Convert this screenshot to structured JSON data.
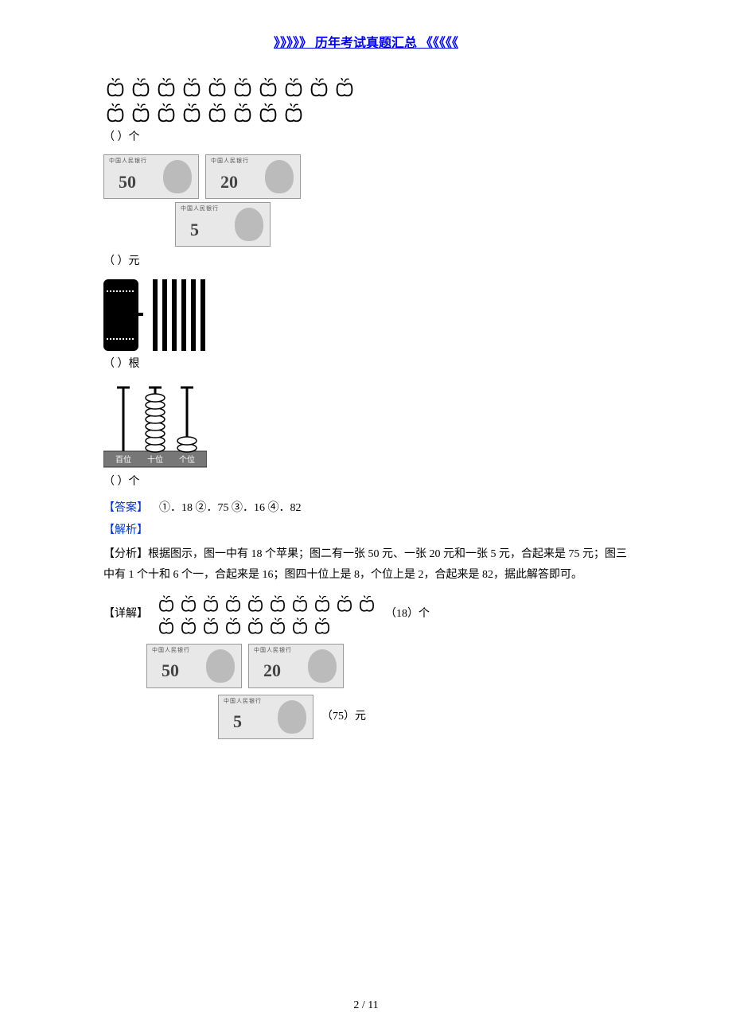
{
  "header_link": "》》》》》 历年考试真题汇总 《《《《《",
  "q1": {
    "apple_rows": [
      10,
      8
    ],
    "unit": "个",
    "blank": "（          ）",
    "answer": "18"
  },
  "q2": {
    "notes": [
      50,
      20,
      5
    ],
    "unit": "元",
    "blank": "（          ）",
    "answer": "75",
    "note_header": "中国人民银行"
  },
  "q3": {
    "bundle": 1,
    "loose": 6,
    "unit": "根",
    "blank": "（          ）",
    "answer": "16"
  },
  "q4": {
    "tens_beads": 8,
    "ones_beads": 2,
    "labels": [
      "百位",
      "十位",
      "个位"
    ],
    "unit": "个",
    "blank": "（          ）",
    "answer": "82"
  },
  "answer_line": {
    "label": "【答案】",
    "items": [
      "①．18",
      "②．75",
      "③．16",
      "④．82"
    ]
  },
  "analysis": {
    "label": "【解析】",
    "fenxi_label": "【分析】",
    "fenxi_text": "根据图示，图一中有 18 个苹果；图二有一张 50 元、一张 20 元和一张 5 元，合起来是 75 元；图三中有 1 个十和 6 个一，合起来是 16；图四十位上是 8，个位上是 2，合起来是 82，据此解答即可。"
  },
  "detail": {
    "label": "【详解】",
    "q1_answer": "（18）个",
    "q2_answer": "（75）元"
  },
  "page": "2 / 11",
  "colors": {
    "blue": "#0033cc",
    "link": "#0000ee"
  }
}
